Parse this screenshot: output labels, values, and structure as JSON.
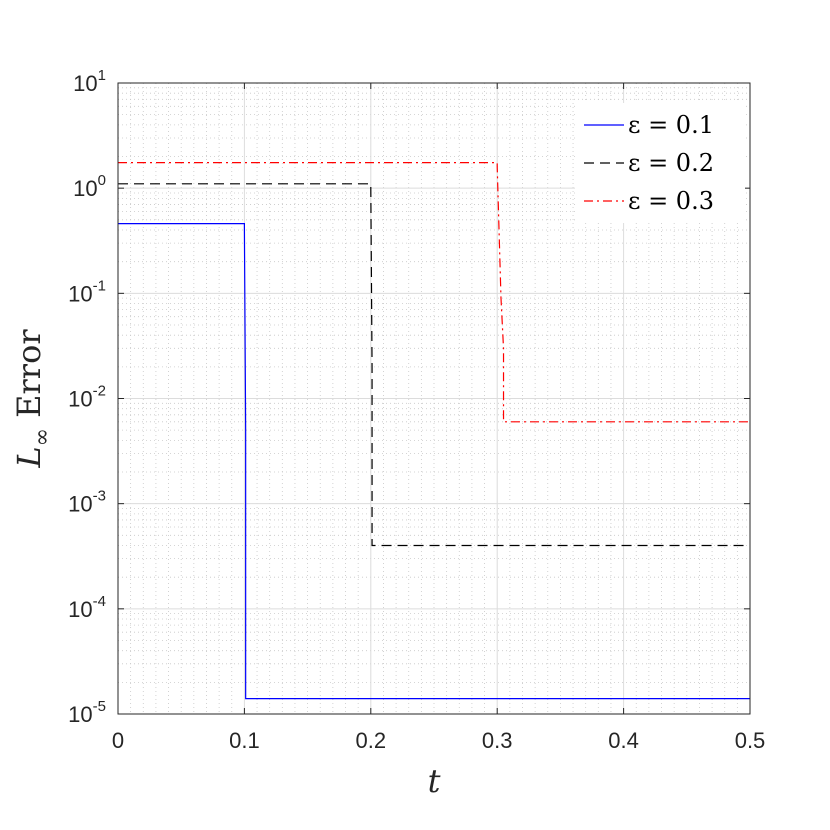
{
  "chart_data": {
    "type": "line",
    "xlabel": "t",
    "ylabel_main": "L",
    "ylabel_sub": "∞",
    "ylabel_rest": " Error",
    "xscale": "linear",
    "yscale": "log",
    "xlim": [
      0,
      0.5
    ],
    "ylim": [
      1e-05,
      10
    ],
    "grid": true,
    "minor_grid": true,
    "legend_position": "top-right",
    "xticks": [
      0,
      0.1,
      0.2,
      0.3,
      0.4,
      0.5
    ],
    "xtick_labels": [
      "0",
      "0.1",
      "0.2",
      "0.3",
      "0.4",
      "0.5"
    ],
    "yticks": [
      {
        "value": 1e-05,
        "base": "10",
        "exp": "-5"
      },
      {
        "value": 0.0001,
        "base": "10",
        "exp": "-4"
      },
      {
        "value": 0.001,
        "base": "10",
        "exp": "-3"
      },
      {
        "value": 0.01,
        "base": "10",
        "exp": "-2"
      },
      {
        "value": 0.1,
        "base": "10",
        "exp": "-1"
      },
      {
        "value": 1,
        "base": "10",
        "exp": "0"
      },
      {
        "value": 10,
        "base": "10",
        "exp": "1"
      }
    ],
    "series": [
      {
        "name": "ε = 0.1",
        "color": "#0000ff",
        "dash": "solid",
        "x": [
          0,
          0.1,
          0.1,
          0.101,
          0.101,
          0.5
        ],
        "y": [
          0.46,
          0.46,
          0.42,
          0.005,
          1.4e-05,
          1.4e-05
        ]
      },
      {
        "name": "ε = 0.2",
        "color": "#000000",
        "dash": "dashed",
        "x": [
          0,
          0.2,
          0.2,
          0.201,
          0.201,
          0.5
        ],
        "y": [
          1.1,
          1.1,
          1.0,
          0.02,
          0.0004,
          0.0004
        ]
      },
      {
        "name": "ε = 0.3",
        "color": "#ff0000",
        "dash": "dashdot",
        "x": [
          0,
          0.3,
          0.3,
          0.303,
          0.303,
          0.305,
          0.305,
          0.5
        ],
        "y": [
          1.75,
          1.75,
          1.6,
          0.09,
          0.09,
          0.03,
          0.006,
          0.006
        ]
      }
    ]
  }
}
